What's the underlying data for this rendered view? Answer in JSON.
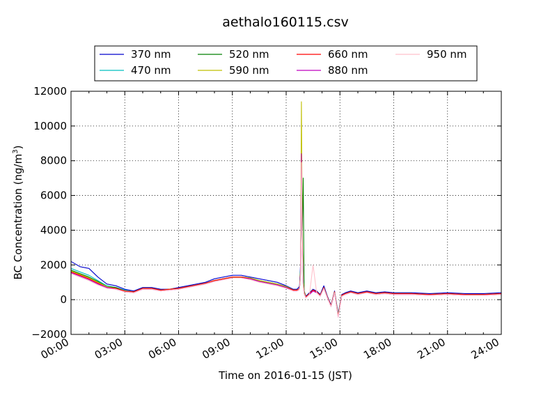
{
  "chart_data": {
    "type": "line",
    "title": "aethalo160115.csv",
    "xlabel": "Time on 2016-01-15 (JST)",
    "ylabel_main": "BC Concentration (ng/m",
    "ylabel_sup": "3",
    "ylabel_close": ")",
    "xlim": [
      0,
      24
    ],
    "ylim": [
      -2000,
      12000
    ],
    "grid": true,
    "legend_position": "top",
    "x_ticks": [
      0,
      3,
      6,
      9,
      12,
      15,
      18,
      21,
      24
    ],
    "x_tick_labels": [
      "00:00",
      "03:00",
      "06:00",
      "09:00",
      "12:00",
      "15:00",
      "18:00",
      "21:00",
      "24:00"
    ],
    "y_ticks": [
      -2000,
      0,
      2000,
      4000,
      6000,
      8000,
      10000,
      12000
    ],
    "y_tick_labels": [
      "−2000",
      "0",
      "2000",
      "4000",
      "6000",
      "8000",
      "10000",
      "12000"
    ],
    "x_hours": [
      0,
      0.5,
      1,
      1.5,
      2,
      2.5,
      3,
      3.5,
      4,
      4.5,
      5,
      5.5,
      6,
      6.5,
      7,
      7.5,
      8,
      8.5,
      9,
      9.5,
      10,
      10.5,
      11,
      11.5,
      12,
      12.4,
      12.6,
      12.7,
      12.75,
      12.8,
      12.85,
      12.9,
      12.95,
      13.0,
      13.1,
      13.3,
      13.5,
      13.7,
      13.9,
      14.1,
      14.3,
      14.5,
      14.7,
      14.9,
      15.1,
      15.3,
      15.6,
      16,
      16.5,
      17,
      17.5,
      18,
      19,
      20,
      21,
      22,
      23,
      24
    ],
    "series": [
      {
        "name": "370 nm",
        "color": "#0000cc",
        "values": [
          2200,
          1900,
          1800,
          1300,
          900,
          800,
          600,
          500,
          700,
          700,
          600,
          600,
          700,
          800,
          900,
          1000,
          1200,
          1300,
          1400,
          1400,
          1300,
          1200,
          1100,
          1000,
          800,
          600,
          600,
          700,
          800,
          2000,
          6500,
          3000,
          1200,
          500,
          200,
          400,
          600,
          500,
          300,
          800,
          200,
          -300,
          500,
          -800,
          300,
          400,
          500,
          400,
          500,
          400,
          450,
          400,
          400,
          350,
          400,
          350,
          350,
          400
        ]
      },
      {
        "name": "470 nm",
        "color": "#00bfbf",
        "values": [
          1800,
          1600,
          1400,
          1100,
          800,
          700,
          550,
          450,
          650,
          650,
          550,
          600,
          650,
          750,
          850,
          950,
          1100,
          1200,
          1300,
          1300,
          1250,
          1100,
          1000,
          900,
          750,
          550,
          550,
          600,
          700,
          1800,
          7000,
          3200,
          1100,
          400,
          150,
          350,
          550,
          450,
          250,
          700,
          150,
          -350,
          450,
          -850,
          250,
          350,
          450,
          350,
          450,
          350,
          400,
          350,
          350,
          300,
          350,
          300,
          300,
          350
        ]
      },
      {
        "name": "520 nm",
        "color": "#007f00",
        "values": [
          1700,
          1500,
          1300,
          1050,
          750,
          700,
          500,
          450,
          650,
          650,
          550,
          600,
          650,
          750,
          850,
          950,
          1100,
          1200,
          1300,
          1300,
          1250,
          1100,
          1000,
          900,
          750,
          550,
          550,
          600,
          700,
          1700,
          7800,
          4000,
          7000,
          500,
          150,
          350,
          550,
          450,
          250,
          700,
          150,
          -350,
          450,
          -900,
          250,
          350,
          450,
          350,
          450,
          350,
          400,
          350,
          350,
          300,
          350,
          300,
          300,
          350
        ]
      },
      {
        "name": "590 nm",
        "color": "#bfbf00",
        "values": [
          1650,
          1450,
          1250,
          1000,
          750,
          650,
          500,
          450,
          650,
          650,
          550,
          600,
          650,
          750,
          850,
          950,
          1100,
          1200,
          1300,
          1300,
          1250,
          1100,
          1000,
          900,
          750,
          550,
          550,
          600,
          700,
          1600,
          11400,
          3500,
          1000,
          450,
          150,
          350,
          550,
          450,
          250,
          700,
          150,
          -350,
          450,
          -900,
          250,
          350,
          450,
          350,
          450,
          350,
          400,
          350,
          350,
          300,
          350,
          300,
          300,
          350
        ]
      },
      {
        "name": "660 nm",
        "color": "#ff0000",
        "values": [
          1600,
          1400,
          1200,
          950,
          700,
          650,
          500,
          450,
          650,
          650,
          550,
          600,
          650,
          750,
          850,
          950,
          1100,
          1200,
          1300,
          1300,
          1200,
          1050,
          950,
          850,
          700,
          550,
          550,
          600,
          700,
          1500,
          8000,
          3000,
          900,
          400,
          150,
          350,
          550,
          450,
          250,
          700,
          150,
          -350,
          450,
          -950,
          250,
          350,
          450,
          350,
          450,
          350,
          400,
          350,
          350,
          300,
          350,
          300,
          300,
          350
        ]
      },
      {
        "name": "880 nm",
        "color": "#bf00bf",
        "values": [
          1550,
          1350,
          1150,
          900,
          700,
          600,
          450,
          400,
          600,
          600,
          500,
          550,
          600,
          700,
          800,
          900,
          1050,
          1150,
          1250,
          1250,
          1200,
          1050,
          950,
          850,
          700,
          500,
          500,
          550,
          650,
          1400,
          8400,
          2800,
          850,
          350,
          100,
          300,
          500,
          400,
          200,
          650,
          100,
          -400,
          400,
          -1000,
          200,
          300,
          400,
          300,
          400,
          300,
          350,
          300,
          300,
          250,
          300,
          250,
          250,
          300
        ]
      },
      {
        "name": "950 nm",
        "color": "#ffc0cb",
        "values": [
          1500,
          1300,
          1100,
          850,
          650,
          600,
          450,
          400,
          600,
          600,
          500,
          550,
          600,
          700,
          800,
          900,
          1050,
          1150,
          1250,
          1250,
          1150,
          1000,
          900,
          800,
          650,
          500,
          500,
          550,
          650,
          1300,
          7900,
          2600,
          800,
          350,
          100,
          300,
          2000,
          400,
          200,
          650,
          100,
          -400,
          400,
          -1000,
          200,
          300,
          400,
          300,
          400,
          300,
          350,
          300,
          300,
          250,
          300,
          250,
          250,
          300
        ]
      }
    ]
  }
}
